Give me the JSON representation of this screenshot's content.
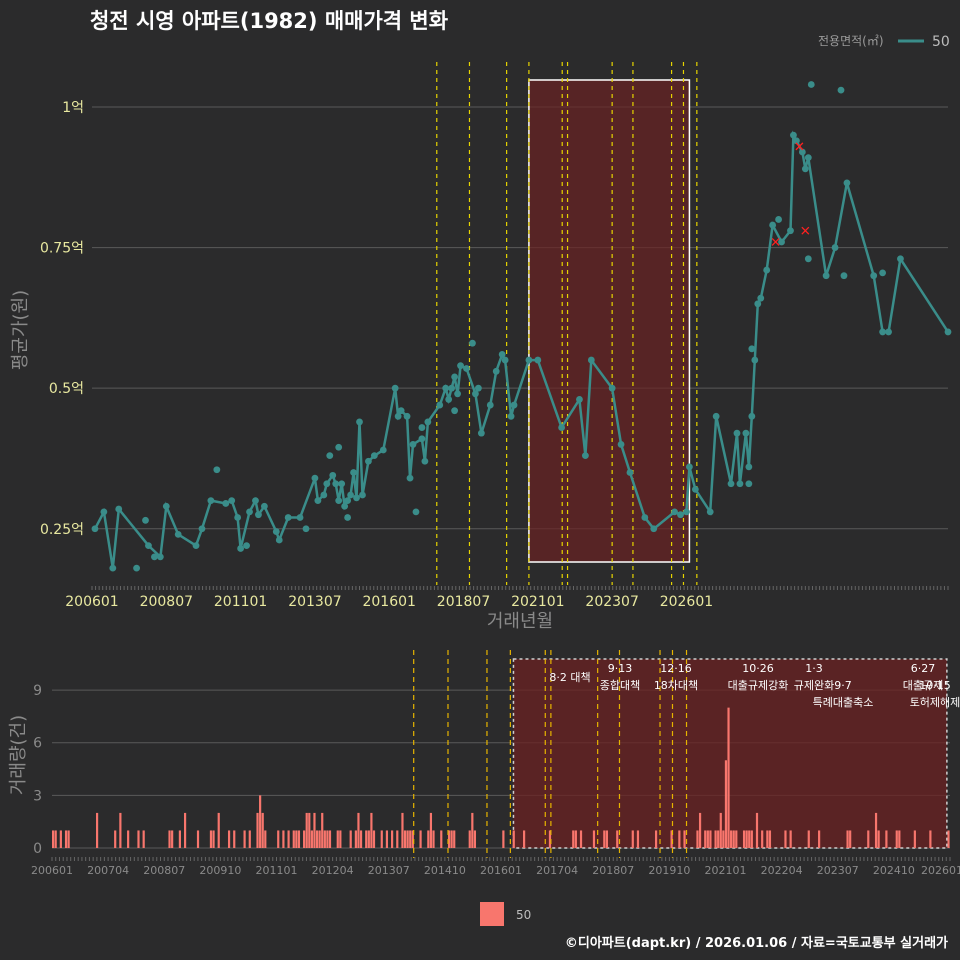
{
  "header": {
    "title": "청전 시영 아파트(1982) 매매가격 변화"
  },
  "legend": {
    "title": "전용면적(㎡)",
    "series_label": "50",
    "bar_label": "50"
  },
  "footer": {
    "credit": "©디아파트(dapt.kr) / 2026.01.06 / 자료=국토교통부 실거래가"
  },
  "colors": {
    "line": "#3a8d8a",
    "bar": "#f8766d",
    "policy": "#e6d400",
    "highlight": "#6b2222",
    "cancel": "#ff2020"
  },
  "chart_data": [
    {
      "type": "line",
      "title": "청전 시영 아파트(1982) 매매가격 변화",
      "xlabel": "거래년월",
      "ylabel": "평균가(원)",
      "ylim": [
        0.15,
        1.08
      ],
      "y_unit": "억",
      "x_ticks": [
        "200601",
        "200807",
        "201101",
        "201307",
        "201601",
        "201807",
        "202101",
        "202307",
        "202601"
      ],
      "y_ticks": [
        {
          "value": 0.25,
          "label": "0.25억"
        },
        {
          "value": 0.5,
          "label": "0.5억"
        },
        {
          "value": 0.75,
          "label": "0.75억"
        },
        {
          "value": 1.0,
          "label": "1억"
        }
      ],
      "series": [
        {
          "name": "50",
          "points": [
            [
              2006.1,
              0.25
            ],
            [
              2006.4,
              0.28
            ],
            [
              2006.7,
              0.18
            ],
            [
              2006.9,
              0.285
            ],
            [
              2007.9,
              0.22
            ],
            [
              2008.3,
              0.2
            ],
            [
              2008.5,
              0.29
            ],
            [
              2008.9,
              0.24
            ],
            [
              2009.5,
              0.22
            ],
            [
              2009.7,
              0.25
            ],
            [
              2010.0,
              0.3
            ],
            [
              2010.5,
              0.295
            ],
            [
              2010.7,
              0.3
            ],
            [
              2010.9,
              0.27
            ],
            [
              2011.0,
              0.215
            ],
            [
              2011.3,
              0.28
            ],
            [
              2011.5,
              0.3
            ],
            [
              2011.6,
              0.275
            ],
            [
              2011.8,
              0.29
            ],
            [
              2012.2,
              0.245
            ],
            [
              2012.3,
              0.23
            ],
            [
              2012.6,
              0.27
            ],
            [
              2013.0,
              0.27
            ],
            [
              2013.5,
              0.34
            ],
            [
              2013.6,
              0.3
            ],
            [
              2013.8,
              0.31
            ],
            [
              2013.9,
              0.33
            ],
            [
              2014.1,
              0.345
            ],
            [
              2014.2,
              0.33
            ],
            [
              2014.3,
              0.3
            ],
            [
              2014.4,
              0.33
            ],
            [
              2014.5,
              0.29
            ],
            [
              2014.6,
              0.3
            ],
            [
              2014.7,
              0.31
            ],
            [
              2014.8,
              0.35
            ],
            [
              2014.9,
              0.305
            ],
            [
              2015.0,
              0.44
            ],
            [
              2015.1,
              0.31
            ],
            [
              2015.3,
              0.37
            ],
            [
              2015.5,
              0.38
            ],
            [
              2015.8,
              0.39
            ],
            [
              2016.2,
              0.5
            ],
            [
              2016.3,
              0.45
            ],
            [
              2016.4,
              0.46
            ],
            [
              2016.6,
              0.45
            ],
            [
              2016.7,
              0.34
            ],
            [
              2016.8,
              0.4
            ],
            [
              2017.1,
              0.41
            ],
            [
              2017.2,
              0.37
            ],
            [
              2017.3,
              0.44
            ],
            [
              2017.7,
              0.47
            ],
            [
              2017.9,
              0.5
            ],
            [
              2018.0,
              0.48
            ],
            [
              2018.1,
              0.5
            ],
            [
              2018.2,
              0.52
            ],
            [
              2018.3,
              0.49
            ],
            [
              2018.4,
              0.54
            ],
            [
              2018.6,
              0.535
            ],
            [
              2018.9,
              0.49
            ],
            [
              2019.1,
              0.42
            ],
            [
              2019.4,
              0.47
            ],
            [
              2019.6,
              0.53
            ],
            [
              2019.8,
              0.56
            ],
            [
              2019.9,
              0.55
            ],
            [
              2020.1,
              0.45
            ],
            [
              2020.2,
              0.47
            ],
            [
              2020.7,
              0.55
            ],
            [
              2021.0,
              0.55
            ],
            [
              2021.8,
              0.43
            ],
            [
              2022.4,
              0.48
            ],
            [
              2022.6,
              0.38
            ],
            [
              2022.8,
              0.55
            ],
            [
              2023.5,
              0.5
            ],
            [
              2023.8,
              0.4
            ],
            [
              2024.1,
              0.35
            ],
            [
              2024.6,
              0.27
            ],
            [
              2024.9,
              0.25
            ],
            [
              2025.6,
              0.28
            ],
            [
              2025.8,
              0.275
            ],
            [
              2026.0,
              0.28
            ],
            [
              2026.1,
              0.36
            ],
            [
              2026.3,
              0.32
            ],
            [
              2026.8,
              0.28
            ],
            [
              2027.0,
              0.45
            ],
            [
              2027.5,
              0.33
            ],
            [
              2027.7,
              0.42
            ],
            [
              2027.8,
              0.33
            ],
            [
              2028.0,
              0.42
            ],
            [
              2028.1,
              0.36
            ],
            [
              2028.2,
              0.45
            ],
            [
              2028.3,
              0.55
            ],
            [
              2028.4,
              0.65
            ],
            [
              2028.5,
              0.66
            ],
            [
              2028.7,
              0.71
            ],
            [
              2028.9,
              0.79
            ],
            [
              2029.2,
              0.76
            ],
            [
              2029.5,
              0.78
            ],
            [
              2029.6,
              0.95
            ],
            [
              2029.7,
              0.94
            ],
            [
              2029.9,
              0.92
            ],
            [
              2030.0,
              0.89
            ],
            [
              2030.1,
              0.91
            ],
            [
              2030.7,
              0.7
            ],
            [
              2031.0,
              0.75
            ],
            [
              2031.4,
              0.865
            ],
            [
              2032.3,
              0.7
            ],
            [
              2032.6,
              0.6
            ],
            [
              2032.8,
              0.6
            ],
            [
              2033.2,
              0.73
            ],
            [
              2034.8,
              0.6
            ]
          ]
        }
      ],
      "extra_points": [
        [
          2007.8,
          0.265
        ],
        [
          2008.1,
          0.2
        ],
        [
          2007.5,
          0.18
        ],
        [
          2010.2,
          0.355
        ],
        [
          2011.2,
          0.22
        ],
        [
          2013.2,
          0.25
        ],
        [
          2014.0,
          0.38
        ],
        [
          2014.3,
          0.395
        ],
        [
          2014.6,
          0.27
        ],
        [
          2016.9,
          0.28
        ],
        [
          2017.1,
          0.43
        ],
        [
          2018.2,
          0.46
        ],
        [
          2018.8,
          0.58
        ],
        [
          2019.0,
          0.5
        ],
        [
          2028.2,
          0.57
        ],
        [
          2028.1,
          0.33
        ],
        [
          2029.1,
          0.8
        ],
        [
          2030.2,
          1.04
        ],
        [
          2031.2,
          1.03
        ],
        [
          2030.1,
          0.73
        ],
        [
          2031.3,
          0.7
        ],
        [
          2032.6,
          0.705
        ]
      ],
      "cancelled_points": [
        [
          2029.0,
          0.76
        ],
        [
          2029.8,
          0.93
        ],
        [
          2030.0,
          0.78
        ]
      ],
      "policy_dates": [
        2017.6,
        2018.7,
        2019.95,
        2020.7,
        2021.82,
        2022.0,
        2023.5,
        2024.2,
        2025.5,
        2025.9,
        2026.35
      ],
      "highlight_range": [
        2020.7,
        2026.1
      ]
    },
    {
      "type": "bar",
      "xlabel": "",
      "ylabel": "거래량(건)",
      "ylim": [
        0,
        11
      ],
      "y_ticks": [
        0,
        3,
        6,
        9
      ],
      "x_ticks": [
        "200601",
        "200704",
        "200807",
        "200910",
        "201101",
        "201204",
        "201307",
        "201410",
        "201601",
        "201704",
        "201807",
        "201910",
        "202101",
        "202204",
        "202307",
        "202410",
        "202601"
      ],
      "annotations": [
        {
          "date": "8·2 대책",
          "label": ""
        },
        {
          "date": "9·13",
          "label": "종합대책"
        },
        {
          "date": "12·16",
          "label": "18차대책"
        },
        {
          "date": "10·26",
          "label": "대출규제강화"
        },
        {
          "date": "1·3",
          "label": "규제완화"
        },
        {
          "date": "9·7",
          "label": "특례대출축소"
        },
        {
          "date": "6·27",
          "label": "대출규제"
        },
        {
          "date": "10·15",
          "label": "토허제해제"
        }
      ],
      "values": [
        1,
        1,
        0,
        1,
        0,
        1,
        1,
        0,
        0,
        0,
        0,
        0,
        0,
        0,
        0,
        0,
        0,
        2,
        0,
        0,
        0,
        0,
        0,
        0,
        1,
        0,
        2,
        0,
        0,
        1,
        0,
        0,
        0,
        1,
        0,
        1,
        0,
        0,
        0,
        0,
        0,
        0,
        0,
        0,
        0,
        1,
        1,
        0,
        0,
        1,
        0,
        2,
        0,
        0,
        0,
        0,
        1,
        0,
        0,
        0,
        0,
        1,
        1,
        0,
        2,
        0,
        0,
        0,
        1,
        0,
        1,
        0,
        0,
        0,
        1,
        0,
        1,
        0,
        0,
        2,
        3,
        2,
        1,
        0,
        0,
        0,
        0,
        1,
        0,
        1,
        0,
        1,
        0,
        1,
        1,
        1,
        0,
        1,
        2,
        2,
        1,
        2,
        1,
        1,
        2,
        1,
        1,
        1,
        0,
        0,
        1,
        1,
        0,
        0,
        0,
        1,
        0,
        1,
        2,
        1,
        0,
        1,
        1,
        2,
        1,
        0,
        0,
        1,
        0,
        1,
        0,
        1,
        0,
        1,
        0,
        2,
        1,
        1,
        1,
        1,
        0,
        0,
        1,
        0,
        0,
        1,
        2,
        1,
        0,
        0,
        1,
        0,
        0,
        1,
        1,
        1,
        0,
        0,
        0,
        0,
        0,
        1,
        2,
        1,
        0,
        0,
        0,
        0,
        0,
        0,
        0,
        0,
        0,
        0,
        1,
        0,
        0,
        0,
        1,
        0,
        0,
        0,
        1,
        0,
        0,
        0,
        0,
        0,
        0,
        0,
        0,
        0,
        1,
        0,
        0,
        0,
        0,
        0,
        0,
        0,
        0,
        1,
        1,
        0,
        1,
        0,
        0,
        0,
        0,
        1,
        0,
        0,
        0,
        1,
        1,
        0,
        0,
        0,
        1,
        0,
        0,
        0,
        0,
        0,
        1,
        0,
        1,
        0,
        0,
        0,
        0,
        0,
        0,
        1,
        0,
        0,
        0,
        0,
        0,
        1,
        0,
        0,
        1,
        0,
        1,
        0,
        0,
        0,
        0,
        1,
        2,
        0,
        1,
        1,
        1,
        0,
        1,
        1,
        2,
        1,
        5,
        8,
        1,
        1,
        1,
        0,
        0,
        1,
        1,
        1,
        1,
        0,
        2,
        0,
        1,
        0,
        1,
        1,
        0,
        0,
        0,
        0,
        0,
        1,
        0,
        1,
        0,
        0,
        0,
        0,
        0,
        0,
        1,
        0,
        0,
        0,
        1,
        0,
        0,
        0,
        0,
        0,
        0,
        0,
        0,
        0,
        0,
        1,
        1,
        0,
        0,
        0,
        0,
        0,
        0,
        1,
        0,
        0,
        2,
        1,
        0,
        0,
        1,
        0,
        0,
        0,
        1,
        1,
        0,
        0,
        0,
        0,
        0,
        1,
        0,
        0,
        0,
        0,
        0,
        1,
        0,
        0,
        0,
        0,
        0,
        0,
        1
      ]
    }
  ]
}
